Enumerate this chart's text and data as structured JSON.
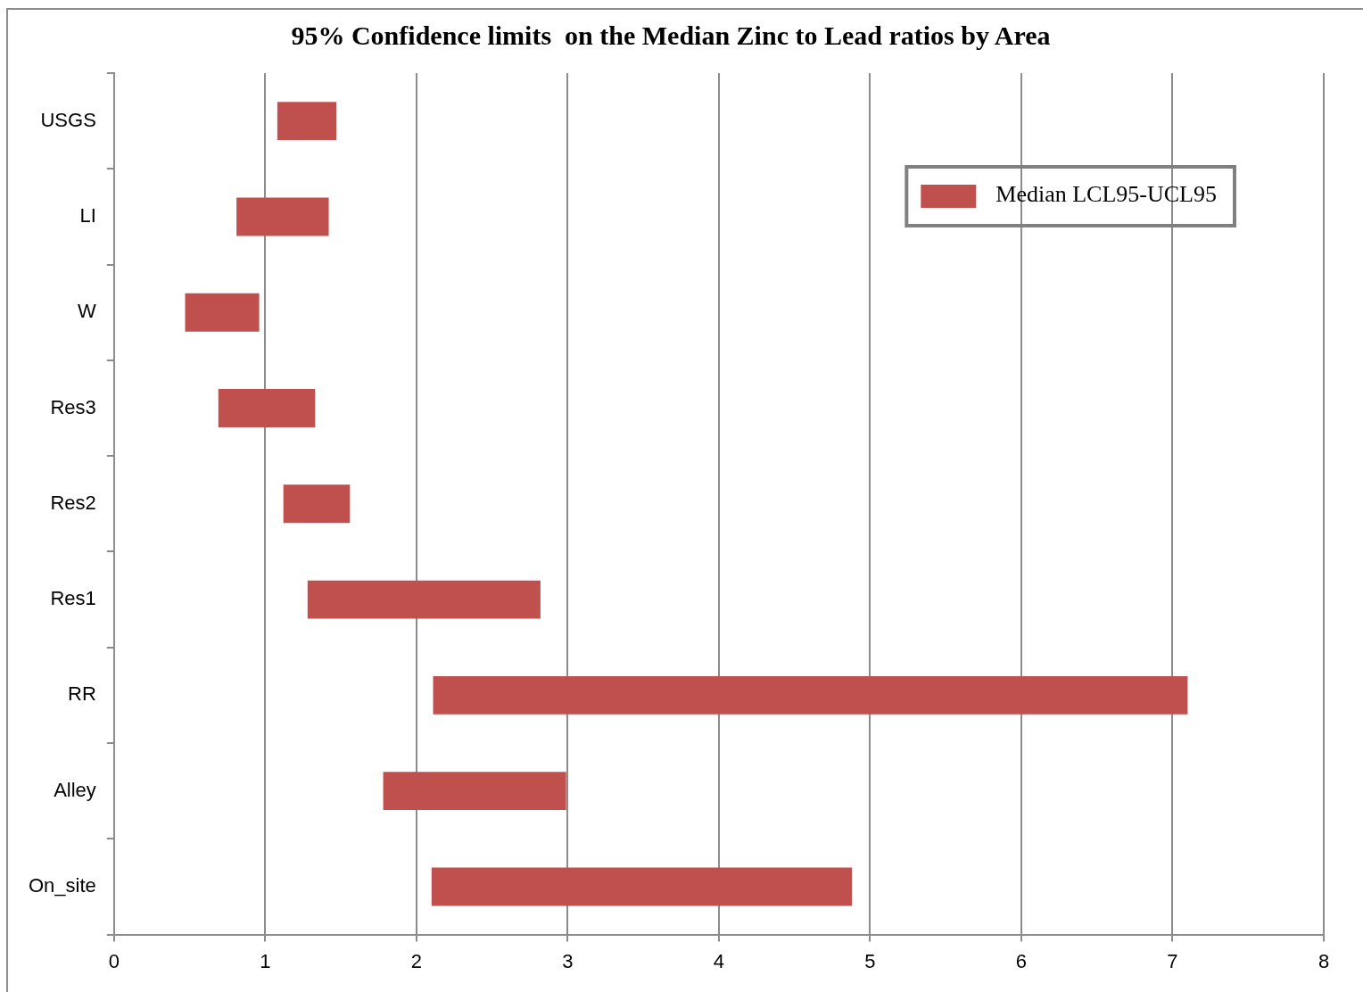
{
  "chart_data": {
    "type": "bar",
    "orientation": "horizontal",
    "title": "95% Confidence limits  on the Median Zinc to Lead ratios by Area",
    "categories": [
      "USGS",
      "LI",
      "W",
      "Res3",
      "Res2",
      "Res1",
      "RR",
      "Alley",
      "On_site"
    ],
    "series": [
      {
        "name": "Median LCL95-UCL95",
        "color": "#c0504d",
        "base": [
          1.08,
          0.81,
          0.47,
          0.69,
          1.12,
          1.28,
          2.11,
          1.78,
          2.1
        ],
        "values": [
          0.39,
          0.61,
          0.49,
          0.64,
          0.44,
          1.54,
          4.99,
          1.21,
          2.78
        ]
      }
    ],
    "xlim": [
      0,
      8
    ],
    "xticks": [
      0,
      1,
      2,
      3,
      4,
      5,
      6,
      7,
      8
    ],
    "grid": "x",
    "legend": "top right"
  }
}
